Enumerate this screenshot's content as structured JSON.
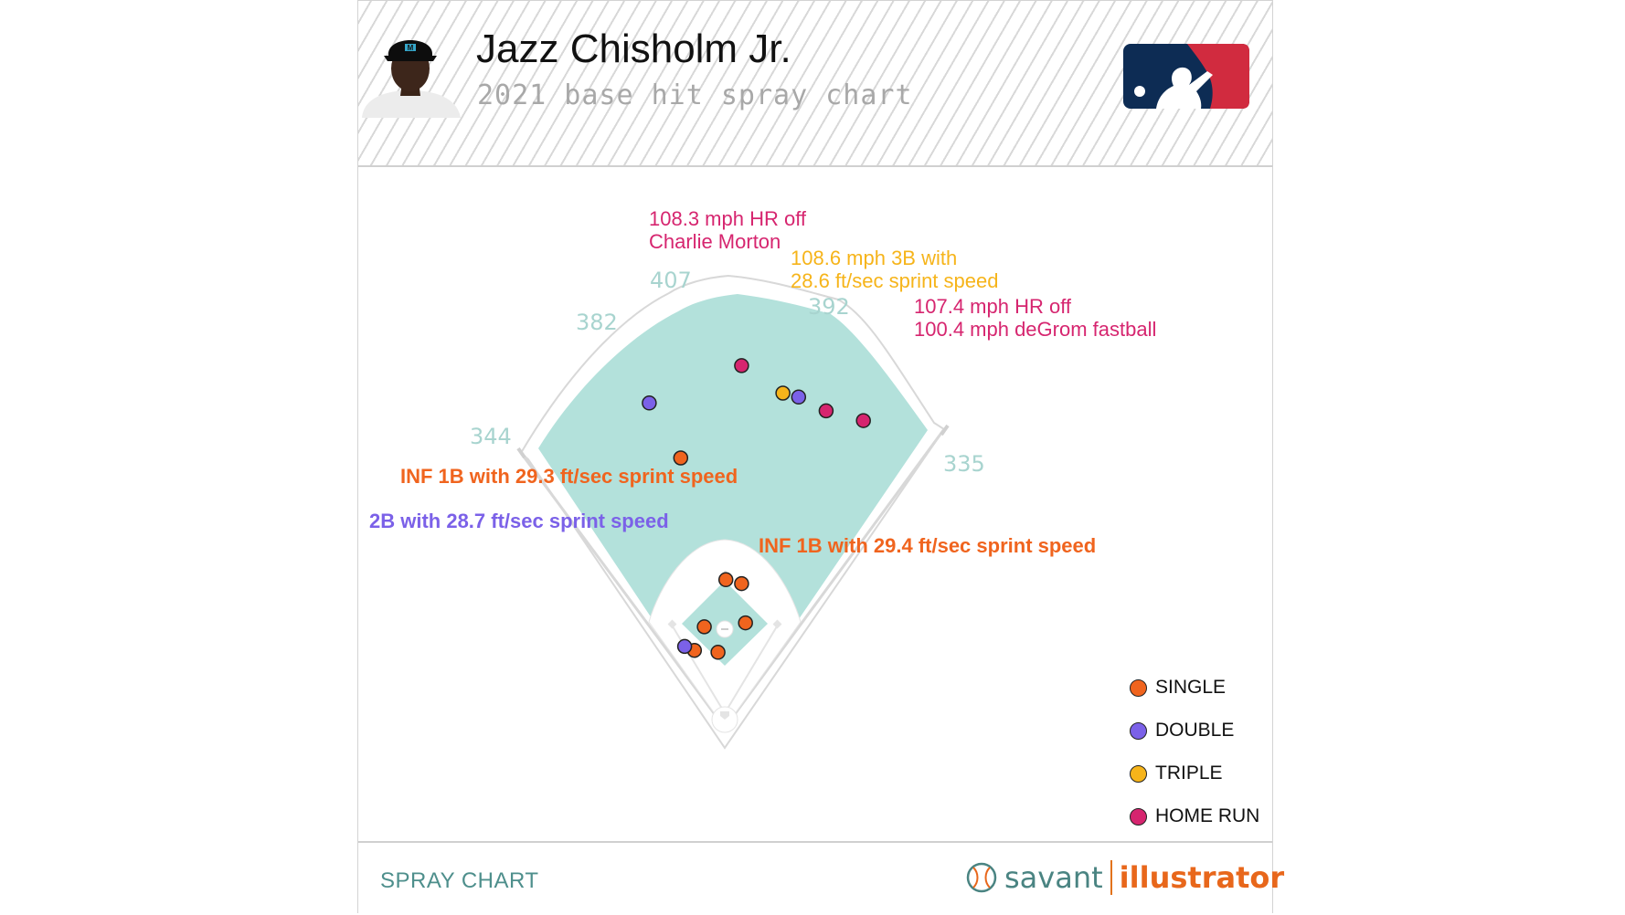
{
  "player": {
    "name": "Jazz Chisholm Jr.",
    "subtitle": "2021 base hit spray chart"
  },
  "footer": {
    "label": "SPRAY CHART",
    "brand_left": "savant",
    "brand_right": "illustrator"
  },
  "colors": {
    "single": "#f0641e",
    "double": "#7b61e8",
    "triple": "#f6b41a",
    "home_run": "#d6256f",
    "field": "#b3e1db",
    "distance_text": "#a8d4cf",
    "footer_text": "#4e8f8c"
  },
  "legend": [
    {
      "key": "single",
      "label": "SINGLE",
      "color": "#f0641e"
    },
    {
      "key": "double",
      "label": "DOUBLE",
      "color": "#7b61e8"
    },
    {
      "key": "triple",
      "label": "TRIPLE",
      "color": "#f6b41a"
    },
    {
      "key": "home_run",
      "label": "HOME RUN",
      "color": "#d6256f"
    }
  ],
  "chart_data": {
    "type": "scatter",
    "title": "Jazz Chisholm Jr.",
    "subtitle": "2021 base hit spray chart",
    "coordinate_system": "Statcast hit coordinates (hc_x, hc_y)",
    "fence_distances_ft": [
      "344",
      "382",
      "407",
      "392",
      "335"
    ],
    "legend_placement": "bottom-right",
    "series": [
      {
        "name": "SINGLE",
        "color": "#f0641e",
        "points": [
          {
            "x": 103,
            "y": 65
          },
          {
            "x": 126,
            "y": 127
          },
          {
            "x": 134,
            "y": 129
          },
          {
            "x": 136,
            "y": 149
          },
          {
            "x": 115,
            "y": 151
          },
          {
            "x": 110,
            "y": 163
          },
          {
            "x": 122,
            "y": 164
          }
        ]
      },
      {
        "name": "DOUBLE",
        "color": "#7b61e8",
        "points": [
          {
            "x": 87,
            "y": 37
          },
          {
            "x": 163,
            "y": 34
          },
          {
            "x": 105,
            "y": 161
          }
        ]
      },
      {
        "name": "TRIPLE",
        "color": "#f6b41a",
        "points": [
          {
            "x": 155,
            "y": 32
          }
        ]
      },
      {
        "name": "HOME RUN",
        "color": "#d6256f",
        "points": [
          {
            "x": 134,
            "y": 18
          },
          {
            "x": 177,
            "y": 41
          },
          {
            "x": 196,
            "y": 46
          }
        ]
      }
    ],
    "annotations": [
      {
        "text": [
          "108.3 mph HR off",
          "Charlie Morton"
        ],
        "color": "#d6256f"
      },
      {
        "text": [
          "108.6 mph 3B with",
          "28.6 ft/sec sprint speed"
        ],
        "color": "#f6b41a"
      },
      {
        "text": [
          "107.4 mph HR off",
          "100.4 mph deGrom fastball"
        ],
        "color": "#d6256f"
      },
      {
        "text": [
          "INF 1B with 29.3 ft/sec sprint speed"
        ],
        "color": "#f0641e"
      },
      {
        "text": [
          "2B with 28.7 ft/sec sprint speed"
        ],
        "color": "#7b61e8"
      },
      {
        "text": [
          "INF 1B with 29.4 ft/sec sprint speed"
        ],
        "color": "#f0641e"
      }
    ]
  }
}
